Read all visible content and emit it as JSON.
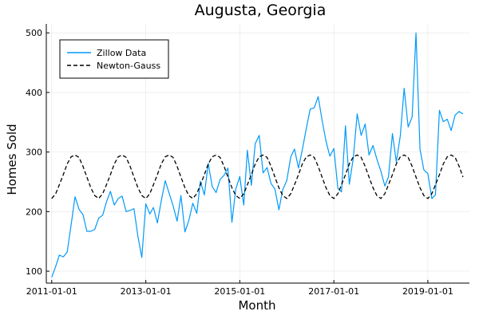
{
  "chart_data": {
    "type": "line",
    "title": "Augusta, Georgia",
    "xlabel": "Month",
    "ylabel": "Homes Sold",
    "x_axis": {
      "kind": "date",
      "range": [
        "2010-11-20",
        "2019-11-20"
      ],
      "ticks": [
        "2011-01-01",
        "2013-01-01",
        "2015-01-01",
        "2017-01-01",
        "2019-01-01"
      ]
    },
    "y_axis": {
      "range": [
        80,
        515
      ],
      "ticks": [
        100,
        200,
        300,
        400,
        500
      ]
    },
    "grid": true,
    "legend_placement": "top-left",
    "series": [
      {
        "name": "Zillow Data",
        "style": "solid",
        "color": "#009AFA",
        "x": [
          "2011-01-01",
          "2011-02-01",
          "2011-03-01",
          "2011-04-01",
          "2011-05-01",
          "2011-06-01",
          "2011-07-01",
          "2011-08-01",
          "2011-09-01",
          "2011-10-01",
          "2011-11-01",
          "2011-12-01",
          "2012-01-01",
          "2012-02-01",
          "2012-03-01",
          "2012-04-01",
          "2012-05-01",
          "2012-06-01",
          "2012-07-01",
          "2012-08-01",
          "2012-09-01",
          "2012-10-01",
          "2012-11-01",
          "2012-12-01",
          "2013-01-01",
          "2013-02-01",
          "2013-03-01",
          "2013-04-01",
          "2013-05-01",
          "2013-06-01",
          "2013-07-01",
          "2013-08-01",
          "2013-09-01",
          "2013-10-01",
          "2013-11-01",
          "2013-12-01",
          "2014-01-01",
          "2014-02-01",
          "2014-03-01",
          "2014-04-01",
          "2014-05-01",
          "2014-06-01",
          "2014-07-01",
          "2014-08-01",
          "2014-09-01",
          "2014-10-01",
          "2014-11-01",
          "2014-12-01",
          "2015-01-01",
          "2015-02-01",
          "2015-03-01",
          "2015-04-01",
          "2015-05-01",
          "2015-06-01",
          "2015-07-01",
          "2015-08-01",
          "2015-09-01",
          "2015-10-01",
          "2015-11-01",
          "2015-12-01",
          "2016-01-01",
          "2016-02-01",
          "2016-03-01",
          "2016-04-01",
          "2016-05-01",
          "2016-06-01",
          "2016-07-01",
          "2016-08-01",
          "2016-09-01",
          "2016-10-01",
          "2016-11-01",
          "2016-12-01",
          "2017-01-01",
          "2017-02-01",
          "2017-03-01",
          "2017-04-01",
          "2017-05-01",
          "2017-06-01",
          "2017-07-01",
          "2017-08-01",
          "2017-09-01",
          "2017-10-01",
          "2017-11-01",
          "2017-12-01",
          "2018-01-01",
          "2018-02-01",
          "2018-03-01",
          "2018-04-01",
          "2018-05-01",
          "2018-06-01",
          "2018-07-01",
          "2018-08-01",
          "2018-09-01",
          "2018-10-01",
          "2018-11-01",
          "2018-12-01",
          "2019-01-01",
          "2019-02-01",
          "2019-03-01",
          "2019-04-01",
          "2019-05-01",
          "2019-06-01",
          "2019-07-01",
          "2019-08-01",
          "2019-09-01",
          "2019-10-01"
        ],
        "y": [
          90,
          108,
          127,
          124,
          132,
          178,
          225,
          204,
          195,
          167,
          167,
          170,
          189,
          194,
          216,
          234,
          211,
          222,
          226,
          200,
          202,
          205,
          158,
          123,
          213,
          196,
          207,
          181,
          218,
          252,
          231,
          210,
          184,
          227,
          166,
          185,
          214,
          197,
          251,
          228,
          281,
          242,
          232,
          254,
          261,
          273,
          182,
          238,
          259,
          211,
          303,
          244,
          314,
          328,
          265,
          274,
          247,
          238,
          203,
          237,
          252,
          292,
          305,
          273,
          304,
          340,
          372,
          374,
          393,
          354,
          318,
          293,
          306,
          239,
          233,
          344,
          246,
          290,
          364,
          328,
          347,
          295,
          311,
          288,
          268,
          243,
          258,
          331,
          283,
          327,
          407,
          342,
          359,
          500,
          305,
          270,
          264,
          222,
          228,
          370,
          351,
          355,
          336,
          362,
          368,
          364
        ]
      },
      {
        "name": "Newton-Gauss",
        "style": "dashed",
        "color": "#000000",
        "x": [
          "2011-01-01",
          "2011-02-01",
          "2011-03-01",
          "2011-04-01",
          "2011-05-01",
          "2011-06-01",
          "2011-07-01",
          "2011-08-01",
          "2011-09-01",
          "2011-10-01",
          "2011-11-01",
          "2011-12-01",
          "2012-01-01",
          "2012-02-01",
          "2012-03-01",
          "2012-04-01",
          "2012-05-01",
          "2012-06-01",
          "2012-07-01",
          "2012-08-01",
          "2012-09-01",
          "2012-10-01",
          "2012-11-01",
          "2012-12-01",
          "2013-01-01",
          "2013-02-01",
          "2013-03-01",
          "2013-04-01",
          "2013-05-01",
          "2013-06-01",
          "2013-07-01",
          "2013-08-01",
          "2013-09-01",
          "2013-10-01",
          "2013-11-01",
          "2013-12-01",
          "2014-01-01",
          "2014-02-01",
          "2014-03-01",
          "2014-04-01",
          "2014-05-01",
          "2014-06-01",
          "2014-07-01",
          "2014-08-01",
          "2014-09-01",
          "2014-10-01",
          "2014-11-01",
          "2014-12-01",
          "2015-01-01",
          "2015-02-01",
          "2015-03-01",
          "2015-04-01",
          "2015-05-01",
          "2015-06-01",
          "2015-07-01",
          "2015-08-01",
          "2015-09-01",
          "2015-10-01",
          "2015-11-01",
          "2015-12-01",
          "2016-01-01",
          "2016-02-01",
          "2016-03-01",
          "2016-04-01",
          "2016-05-01",
          "2016-06-01",
          "2016-07-01",
          "2016-08-01",
          "2016-09-01",
          "2016-10-01",
          "2016-11-01",
          "2016-12-01",
          "2017-01-01",
          "2017-02-01",
          "2017-03-01",
          "2017-04-01",
          "2017-05-01",
          "2017-06-01",
          "2017-07-01",
          "2017-08-01",
          "2017-09-01",
          "2017-10-01",
          "2017-11-01",
          "2017-12-01",
          "2018-01-01",
          "2018-02-01",
          "2018-03-01",
          "2018-04-01",
          "2018-05-01",
          "2018-06-01",
          "2018-07-01",
          "2018-08-01",
          "2018-09-01",
          "2018-10-01",
          "2018-11-01",
          "2018-12-01",
          "2019-01-01",
          "2019-02-01",
          "2019-03-01",
          "2019-04-01",
          "2019-05-01",
          "2019-06-01",
          "2019-07-01",
          "2019-08-01",
          "2019-09-01",
          "2019-10-01"
        ],
        "y": [
          222,
          230,
          245,
          262,
          280,
          292,
          295,
          291,
          276,
          258,
          240,
          227,
          222,
          230,
          245,
          262,
          280,
          292,
          295,
          291,
          276,
          258,
          240,
          227,
          222,
          230,
          245,
          262,
          280,
          292,
          295,
          291,
          276,
          258,
          240,
          227,
          222,
          230,
          245,
          262,
          280,
          292,
          295,
          291,
          276,
          258,
          240,
          227,
          222,
          230,
          245,
          262,
          280,
          292,
          295,
          291,
          276,
          258,
          240,
          227,
          222,
          230,
          245,
          262,
          280,
          292,
          295,
          291,
          276,
          258,
          240,
          227,
          222,
          230,
          245,
          262,
          280,
          292,
          295,
          291,
          276,
          258,
          240,
          227,
          222,
          230,
          245,
          262,
          280,
          292,
          295,
          291,
          276,
          258,
          240,
          227,
          222,
          230,
          245,
          262,
          280,
          292,
          295,
          291,
          276,
          258
        ]
      }
    ]
  },
  "legend_colors": {
    "frame": "#000000",
    "axis": "#000000",
    "grid": "#000000"
  }
}
